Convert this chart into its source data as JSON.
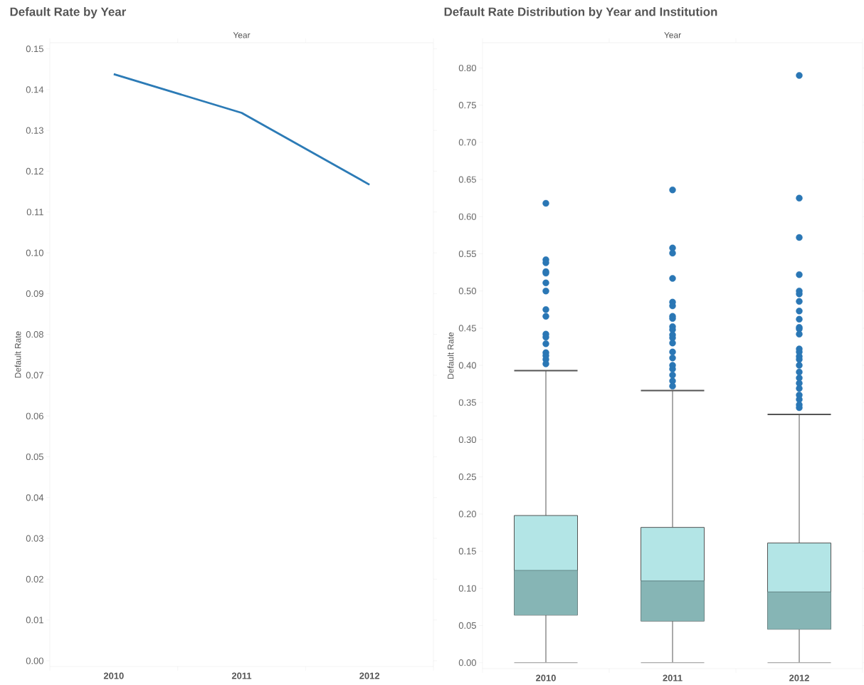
{
  "chart_data": [
    {
      "type": "line",
      "title": "Default Rate by Year",
      "xlabel": "Year",
      "ylabel": "Default Rate",
      "categories": [
        "2010",
        "2011",
        "2012"
      ],
      "series": [
        {
          "color": "#2c7bb6",
          "values": [
            0.1438,
            0.1343,
            0.1167
          ]
        }
      ],
      "ylim": [
        -0.0014,
        0.1515
      ],
      "yticks": [
        {
          "value": 0,
          "label": "0.00"
        },
        0.01,
        0.02,
        0.03,
        0.04,
        0.05,
        0.06,
        0.07,
        0.08,
        0.09,
        {
          "value": 0.1,
          "label": "0.10"
        },
        0.11,
        0.12,
        0.13,
        0.14,
        0.15
      ],
      "grid": false,
      "marker": "none",
      "line_style": "solid"
    },
    {
      "type": "box",
      "title": "Default Rate Distribution by Year and Institution",
      "xlabel": "Year",
      "ylabel": "Default Rate",
      "categories": [
        "2010",
        "2011",
        "2012"
      ],
      "series": [
        {
          "color": "#86b5b5",
          "boxes": [
            {
              "low": 0,
              "q1": 0.064,
              "median": 0.124,
              "q3": 0.198,
              "high": 0.393,
              "outliers": [
                0.618,
                0.542,
                0.538,
                0.526,
                0.524,
                0.511,
                0.5,
                0.475,
                0.466,
                0.442,
                0.438,
                0.429,
                0.417,
                0.413,
                0.408,
                0.402
              ]
            },
            {
              "low": 0,
              "q1": 0.056,
              "median": 0.11,
              "q3": 0.182,
              "high": 0.366,
              "outliers": [
                0.636,
                0.558,
                0.551,
                0.517,
                0.485,
                0.48,
                0.466,
                0.463,
                0.452,
                0.448,
                0.441,
                0.437,
                0.43,
                0.418,
                0.41,
                0.4,
                0.395,
                0.387,
                0.379,
                0.372
              ]
            },
            {
              "low": 0,
              "q1": 0.045,
              "median": 0.095,
              "q3": 0.161,
              "high": 0.334,
              "outliers": [
                0.79,
                0.625,
                0.572,
                0.522,
                0.5,
                0.496,
                0.486,
                0.473,
                0.462,
                0.451,
                0.449,
                0.442,
                0.422,
                0.418,
                0.412,
                0.408,
                0.4,
                0.391,
                0.383,
                0.376,
                0.369,
                0.36,
                0.354,
                0.347,
                0.343
              ]
            }
          ]
        }
      ],
      "ylim": [
        -0.008,
        0.834
      ],
      "yticks": [
        {
          "value": 0,
          "label": "0.00"
        },
        0.05,
        {
          "value": 0.1,
          "label": "0.10"
        },
        0.15,
        {
          "value": 0.2,
          "label": "0.20"
        },
        0.25,
        {
          "value": 0.3,
          "label": "0.30"
        },
        0.35,
        {
          "value": 0.4,
          "label": "0.40"
        },
        0.45,
        {
          "value": 0.5,
          "label": "0.50"
        },
        0.55,
        {
          "value": 0.6,
          "label": "0.60"
        },
        0.65,
        {
          "value": 0.7,
          "label": "0.70"
        },
        0.75,
        {
          "value": 0.8,
          "label": "0.80"
        }
      ],
      "grid": false
    }
  ]
}
